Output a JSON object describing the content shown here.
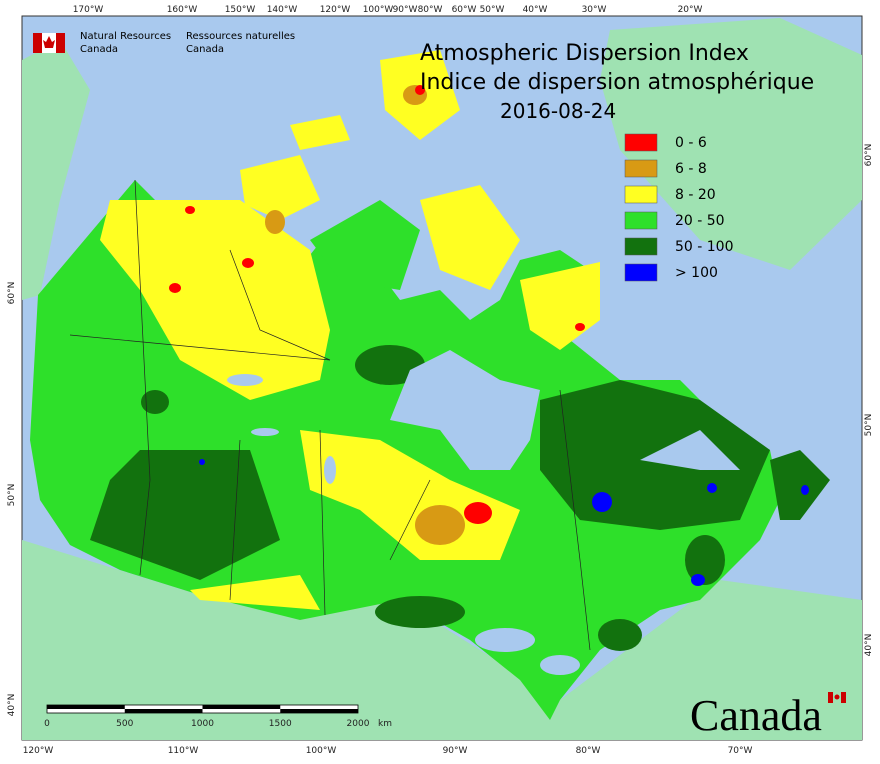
{
  "header": {
    "agency_en": [
      "Natural Resources",
      "Canada"
    ],
    "agency_fr": [
      "Ressources naturelles",
      "Canada"
    ],
    "title_en": "Atmospheric Dispersion Index",
    "title_fr": "Indice de dispersion atmosphérique",
    "date": "2016-08-24"
  },
  "legend": [
    {
      "label": "0 - 6",
      "color": "#ff0000"
    },
    {
      "label": "6 - 8",
      "color": "#d89a14"
    },
    {
      "label": "8 - 20",
      "color": "#ffff22"
    },
    {
      "label": "20 - 50",
      "color": "#2ee02a"
    },
    {
      "label": "50 - 100",
      "color": "#12720e"
    },
    {
      "label": "> 100",
      "color": "#0000ff"
    }
  ],
  "graticule": {
    "top": [
      "170°W",
      "160°W",
      "150°W",
      "140°W",
      "120°W",
      "100°W",
      "90°W",
      "80°W",
      "60°W",
      "50°W",
      "40°W",
      "30°W",
      "20°W"
    ],
    "bottom": [
      "120°W",
      "110°W",
      "100°W",
      "90°W",
      "80°W",
      "70°W"
    ],
    "left": [
      "60°N",
      "50°N",
      "40°N"
    ],
    "right": [
      "60°N",
      "50°N",
      "40°N"
    ]
  },
  "scale_bar": {
    "ticks": [
      0,
      500,
      1000,
      1500,
      2000
    ],
    "unit": "km"
  },
  "wordmark": "Canada"
}
